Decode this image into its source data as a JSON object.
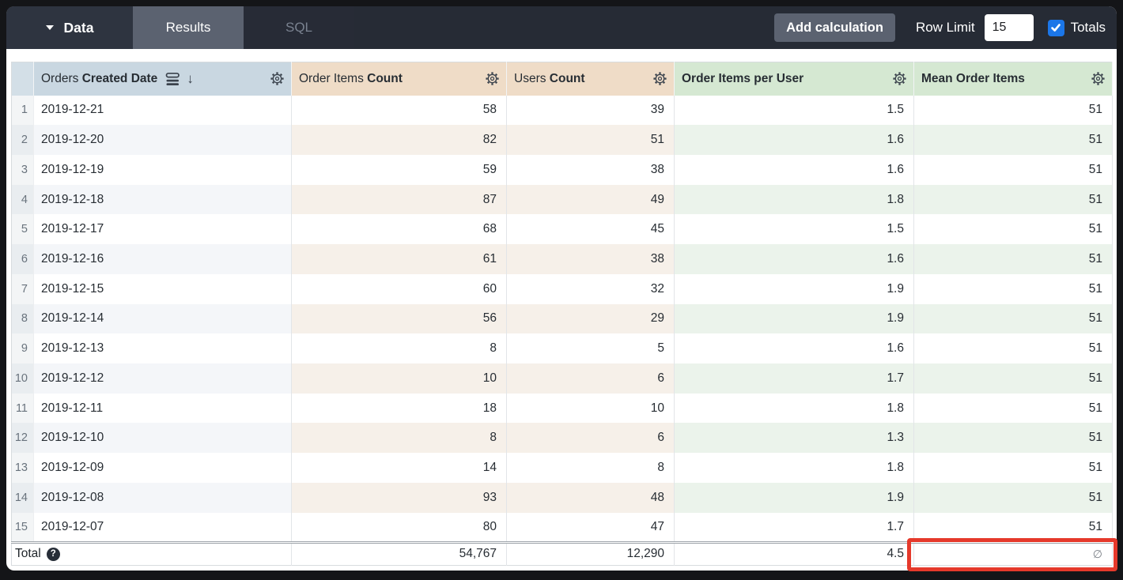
{
  "topbar": {
    "data_tab": "Data",
    "results_tab": "Results",
    "sql_tab": "SQL",
    "add_calculation": "Add calculation",
    "row_limit_label": "Row Limit",
    "row_limit_value": "15",
    "totals_label": "Totals",
    "totals_checked": true
  },
  "icons": {
    "sort_desc_arrow": "↓",
    "help": "?"
  },
  "table": {
    "columns": [
      {
        "prefix": "Orders ",
        "bold": "Created Date",
        "type": "dimension",
        "sorted_desc": true
      },
      {
        "prefix": "Order Items ",
        "bold": "Count",
        "type": "measure"
      },
      {
        "prefix": "Users ",
        "bold": "Count",
        "type": "measure"
      },
      {
        "prefix": "",
        "bold": "Order Items per User",
        "type": "calculation"
      },
      {
        "prefix": "",
        "bold": "Mean Order Items",
        "type": "calculation"
      }
    ],
    "rows": [
      {
        "num": "1",
        "date": "2019-12-21",
        "order_items_count": "58",
        "users_count": "39",
        "order_items_per_user": "1.5",
        "mean_order_items": "51"
      },
      {
        "num": "2",
        "date": "2019-12-20",
        "order_items_count": "82",
        "users_count": "51",
        "order_items_per_user": "1.6",
        "mean_order_items": "51"
      },
      {
        "num": "3",
        "date": "2019-12-19",
        "order_items_count": "59",
        "users_count": "38",
        "order_items_per_user": "1.6",
        "mean_order_items": "51"
      },
      {
        "num": "4",
        "date": "2019-12-18",
        "order_items_count": "87",
        "users_count": "49",
        "order_items_per_user": "1.8",
        "mean_order_items": "51"
      },
      {
        "num": "5",
        "date": "2019-12-17",
        "order_items_count": "68",
        "users_count": "45",
        "order_items_per_user": "1.5",
        "mean_order_items": "51"
      },
      {
        "num": "6",
        "date": "2019-12-16",
        "order_items_count": "61",
        "users_count": "38",
        "order_items_per_user": "1.6",
        "mean_order_items": "51"
      },
      {
        "num": "7",
        "date": "2019-12-15",
        "order_items_count": "60",
        "users_count": "32",
        "order_items_per_user": "1.9",
        "mean_order_items": "51"
      },
      {
        "num": "8",
        "date": "2019-12-14",
        "order_items_count": "56",
        "users_count": "29",
        "order_items_per_user": "1.9",
        "mean_order_items": "51"
      },
      {
        "num": "9",
        "date": "2019-12-13",
        "order_items_count": "8",
        "users_count": "5",
        "order_items_per_user": "1.6",
        "mean_order_items": "51"
      },
      {
        "num": "10",
        "date": "2019-12-12",
        "order_items_count": "10",
        "users_count": "6",
        "order_items_per_user": "1.7",
        "mean_order_items": "51"
      },
      {
        "num": "11",
        "date": "2019-12-11",
        "order_items_count": "18",
        "users_count": "10",
        "order_items_per_user": "1.8",
        "mean_order_items": "51"
      },
      {
        "num": "12",
        "date": "2019-12-10",
        "order_items_count": "8",
        "users_count": "6",
        "order_items_per_user": "1.3",
        "mean_order_items": "51"
      },
      {
        "num": "13",
        "date": "2019-12-09",
        "order_items_count": "14",
        "users_count": "8",
        "order_items_per_user": "1.8",
        "mean_order_items": "51"
      },
      {
        "num": "14",
        "date": "2019-12-08",
        "order_items_count": "93",
        "users_count": "48",
        "order_items_per_user": "1.9",
        "mean_order_items": "51"
      },
      {
        "num": "15",
        "date": "2019-12-07",
        "order_items_count": "80",
        "users_count": "47",
        "order_items_per_user": "1.7",
        "mean_order_items": "51"
      }
    ],
    "total": {
      "label": "Total",
      "order_items_count": "54,767",
      "users_count": "12,290",
      "order_items_per_user": "4.5",
      "mean_order_items": "∅"
    }
  },
  "colors": {
    "accent_blue": "#1b76e8",
    "annotation_red": "#e5392b",
    "dimension_header": "#c9d7e1",
    "measure_header": "#efdcc7",
    "calculation_header": "#d5e8d2"
  }
}
